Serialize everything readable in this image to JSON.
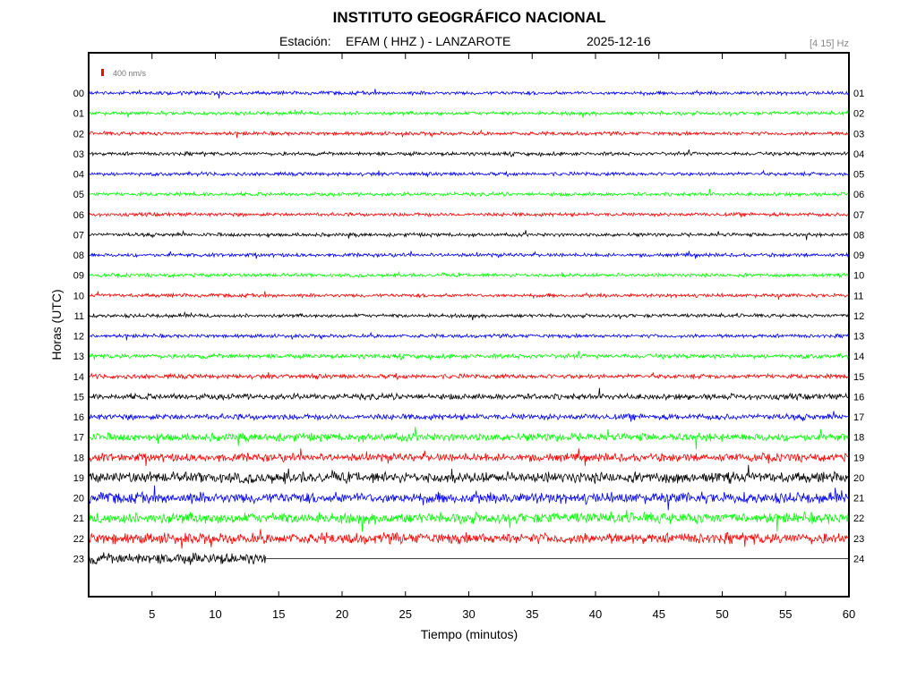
{
  "header": {
    "title": "INSTITUTO GEOGRÁFICO NACIONAL",
    "station_prefix": "Estación:",
    "station": "EFAM ( HHZ ) - LANZAROTE",
    "date": "2025-12-16",
    "filter": "[4 15] Hz"
  },
  "chart_data": {
    "type": "line",
    "title": "INSTITUTO GEOGRÁFICO NACIONAL",
    "xlabel": "Tiempo (minutos)",
    "ylabel": "Horas (UTC)",
    "xlim": [
      0,
      60
    ],
    "x_ticks": [
      5,
      10,
      15,
      20,
      25,
      30,
      35,
      40,
      45,
      50,
      55,
      60
    ],
    "left_hour_labels": [
      "00",
      "01",
      "02",
      "03",
      "04",
      "05",
      "06",
      "07",
      "08",
      "09",
      "10",
      "11",
      "12",
      "13",
      "14",
      "15",
      "16",
      "17",
      "18",
      "19",
      "20",
      "21",
      "22",
      "23"
    ],
    "right_hour_labels": [
      "01",
      "02",
      "03",
      "04",
      "05",
      "06",
      "07",
      "08",
      "09",
      "10",
      "11",
      "12",
      "13",
      "14",
      "15",
      "16",
      "17",
      "18",
      "19",
      "20",
      "21",
      "22",
      "23",
      "24"
    ],
    "trace_colors": [
      "#0000ff",
      "#00ff00",
      "#ff0000",
      "#000000"
    ],
    "scale_bar": {
      "label": "400 nm/s",
      "color": "#ff0000"
    },
    "last_trace_data_end_minute": 14,
    "grid": false,
    "legend": "none"
  }
}
